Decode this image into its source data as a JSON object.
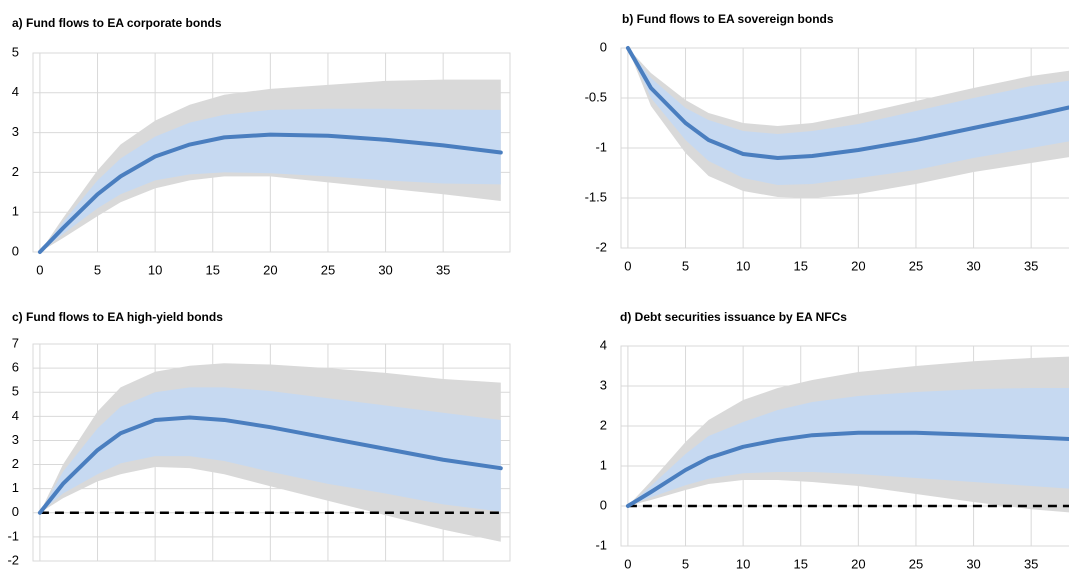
{
  "chart_data": [
    {
      "type": "line",
      "title": "a) Fund flows to EA corporate bonds",
      "x": [
        0,
        2,
        5,
        7,
        10,
        13,
        16,
        20,
        25,
        30,
        35,
        40
      ],
      "values": [
        0,
        0.6,
        1.45,
        1.9,
        2.4,
        2.7,
        2.88,
        2.95,
        2.92,
        2.82,
        2.68,
        2.5
      ],
      "color": "#4a7ebf",
      "bands": [
        {
          "color": "#d9d9d9",
          "lower": [
            0,
            0.35,
            0.9,
            1.25,
            1.6,
            1.8,
            1.9,
            1.9,
            1.75,
            1.6,
            1.45,
            1.28
          ],
          "upper": [
            0,
            0.85,
            2.05,
            2.7,
            3.3,
            3.7,
            3.95,
            4.1,
            4.2,
            4.3,
            4.33,
            4.33
          ]
        },
        {
          "color": "#c6d9f1",
          "lower": [
            0,
            0.45,
            1.1,
            1.45,
            1.8,
            1.95,
            2.0,
            1.98,
            1.9,
            1.8,
            1.72,
            1.7
          ],
          "upper": [
            0,
            0.75,
            1.8,
            2.35,
            2.9,
            3.25,
            3.45,
            3.57,
            3.6,
            3.6,
            3.58,
            3.57
          ]
        }
      ],
      "xlim": [
        -0.6,
        40.8
      ],
      "ylim": [
        0,
        5
      ],
      "xticks": [
        0,
        5,
        10,
        15,
        20,
        25,
        30,
        35
      ],
      "yticks": [
        0,
        1,
        2,
        3,
        4,
        5
      ],
      "grid": true
    },
    {
      "type": "line",
      "title": "b) Fund flows to EA sovereign bonds",
      "x": [
        0,
        2,
        5,
        7,
        10,
        13,
        16,
        20,
        25,
        30,
        35,
        40
      ],
      "values": [
        0,
        -0.4,
        -0.75,
        -0.92,
        -1.06,
        -1.1,
        -1.08,
        -1.02,
        -0.92,
        -0.8,
        -0.68,
        -0.55
      ],
      "color": "#4a7ebf",
      "bands": [
        {
          "color": "#d9d9d9",
          "lower": [
            0,
            -0.58,
            -1.05,
            -1.28,
            -1.43,
            -1.49,
            -1.5,
            -1.46,
            -1.36,
            -1.24,
            -1.15,
            -1.06
          ],
          "upper": [
            0,
            -0.25,
            -0.52,
            -0.65,
            -0.75,
            -0.78,
            -0.75,
            -0.66,
            -0.53,
            -0.4,
            -0.28,
            -0.2
          ]
        },
        {
          "color": "#c6d9f1",
          "lower": [
            0,
            -0.5,
            -0.92,
            -1.13,
            -1.3,
            -1.37,
            -1.36,
            -1.3,
            -1.22,
            -1.1,
            -1.0,
            -0.9
          ],
          "upper": [
            0,
            -0.3,
            -0.6,
            -0.72,
            -0.83,
            -0.86,
            -0.83,
            -0.76,
            -0.63,
            -0.5,
            -0.38,
            -0.3
          ]
        }
      ],
      "xlim": [
        -0.6,
        40.8
      ],
      "ylim": [
        -2,
        0
      ],
      "xticks": [
        0,
        5,
        10,
        15,
        20,
        25,
        30,
        35
      ],
      "yticks": [
        -2,
        -1.5,
        -1,
        -0.5,
        0
      ],
      "grid": true
    },
    {
      "type": "line",
      "title": "c) Fund flows to EA high-yield bonds",
      "x": [
        0,
        2,
        5,
        7,
        10,
        13,
        16,
        20,
        25,
        30,
        35,
        40
      ],
      "values": [
        0,
        1.2,
        2.6,
        3.3,
        3.85,
        3.95,
        3.85,
        3.55,
        3.1,
        2.65,
        2.2,
        1.85
      ],
      "color": "#4a7ebf",
      "bands": [
        {
          "color": "#d9d9d9",
          "lower": [
            0,
            0.6,
            1.3,
            1.6,
            1.9,
            1.85,
            1.6,
            1.1,
            0.5,
            -0.1,
            -0.7,
            -1.2
          ],
          "upper": [
            0,
            2.0,
            4.2,
            5.2,
            5.85,
            6.1,
            6.2,
            6.15,
            6.0,
            5.8,
            5.55,
            5.4
          ]
        },
        {
          "color": "#c6d9f1",
          "lower": [
            0,
            0.8,
            1.6,
            2.05,
            2.35,
            2.35,
            2.15,
            1.7,
            1.2,
            0.8,
            0.35,
            0.05
          ],
          "upper": [
            0,
            1.7,
            3.5,
            4.4,
            5.0,
            5.2,
            5.2,
            5.05,
            4.75,
            4.45,
            4.15,
            3.85
          ]
        }
      ],
      "hline": 0,
      "xlim": [
        -0.6,
        40.8
      ],
      "ylim": [
        -2,
        7
      ],
      "xticks": [
        0,
        5,
        10,
        15,
        20,
        25,
        30,
        35
      ],
      "yticks": [
        -2,
        -1,
        0,
        1,
        2,
        3,
        4,
        5,
        6,
        7
      ],
      "grid": true
    },
    {
      "type": "line",
      "title": "d) Debt securities issuance by EA NFCs",
      "x": [
        0,
        2,
        5,
        7,
        10,
        13,
        16,
        20,
        25,
        30,
        35,
        40
      ],
      "values": [
        0,
        0.35,
        0.9,
        1.2,
        1.48,
        1.65,
        1.77,
        1.83,
        1.83,
        1.78,
        1.72,
        1.65
      ],
      "color": "#4a7ebf",
      "bands": [
        {
          "color": "#d9d9d9",
          "lower": [
            0,
            0.15,
            0.4,
            0.55,
            0.65,
            0.65,
            0.6,
            0.5,
            0.3,
            0.1,
            -0.08,
            -0.2
          ],
          "upper": [
            0,
            0.62,
            1.6,
            2.15,
            2.65,
            2.95,
            3.15,
            3.35,
            3.5,
            3.62,
            3.7,
            3.75
          ]
        },
        {
          "color": "#c6d9f1",
          "lower": [
            0,
            0.22,
            0.52,
            0.68,
            0.82,
            0.85,
            0.85,
            0.8,
            0.7,
            0.6,
            0.5,
            0.4
          ],
          "upper": [
            0,
            0.5,
            1.3,
            1.75,
            2.1,
            2.4,
            2.6,
            2.75,
            2.85,
            2.92,
            2.95,
            2.95
          ]
        }
      ],
      "hline": 0,
      "xlim": [
        -0.6,
        40.8
      ],
      "ylim": [
        -1,
        4
      ],
      "xticks": [
        0,
        5,
        10,
        15,
        20,
        25,
        30,
        35
      ],
      "yticks": [
        -1,
        0,
        1,
        2,
        3,
        4
      ],
      "grid": true
    }
  ]
}
